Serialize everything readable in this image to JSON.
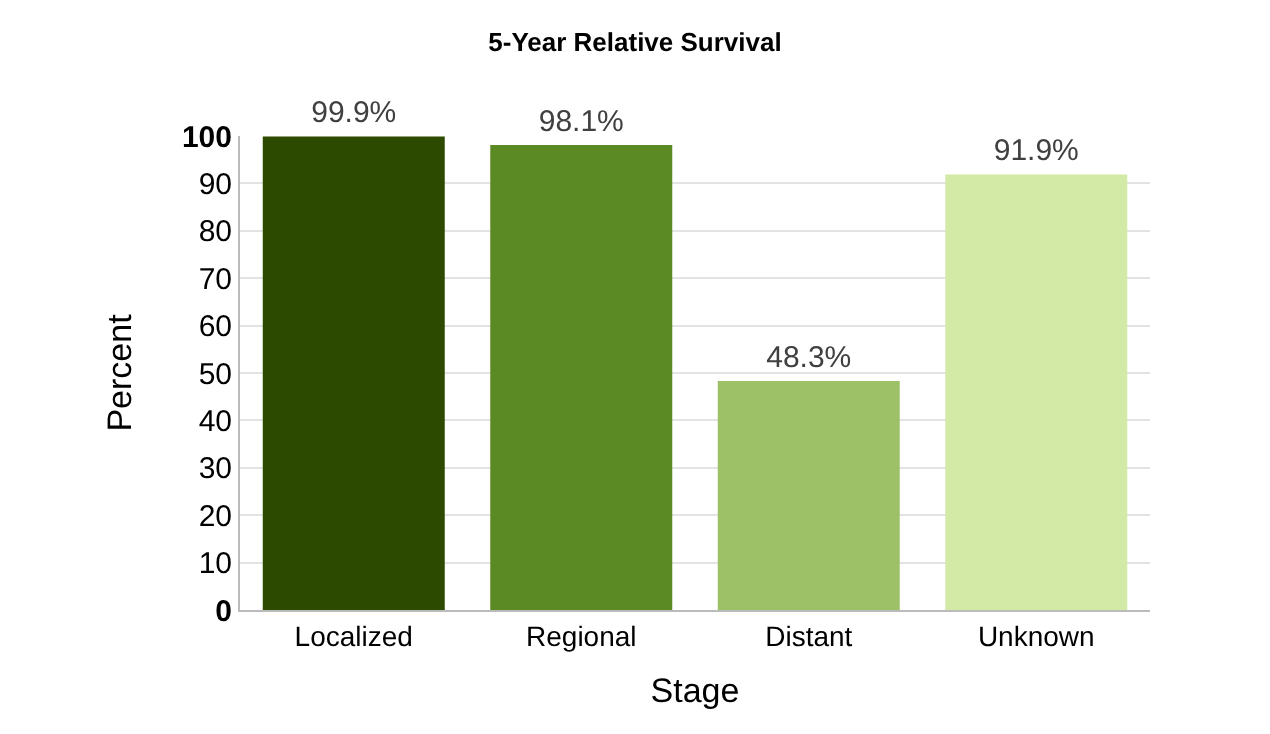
{
  "chart_data": {
    "type": "bar",
    "title": "5-Year Relative Survival",
    "xlabel": "Stage",
    "ylabel": "Percent",
    "categories": [
      "Localized",
      "Regional",
      "Distant",
      "Unknown"
    ],
    "values": [
      99.9,
      98.1,
      48.3,
      91.9
    ],
    "colors": [
      "#2c4a00",
      "#5b8a24",
      "#9dc166",
      "#d3eaa6"
    ],
    "value_labels": [
      "99.9%",
      "98.1%",
      "48.3%",
      "91.9%"
    ],
    "ylim": [
      0,
      100
    ],
    "yticks": [
      0,
      10,
      20,
      30,
      40,
      50,
      60,
      70,
      80,
      90,
      100
    ],
    "grid": "y",
    "legend": false
  }
}
